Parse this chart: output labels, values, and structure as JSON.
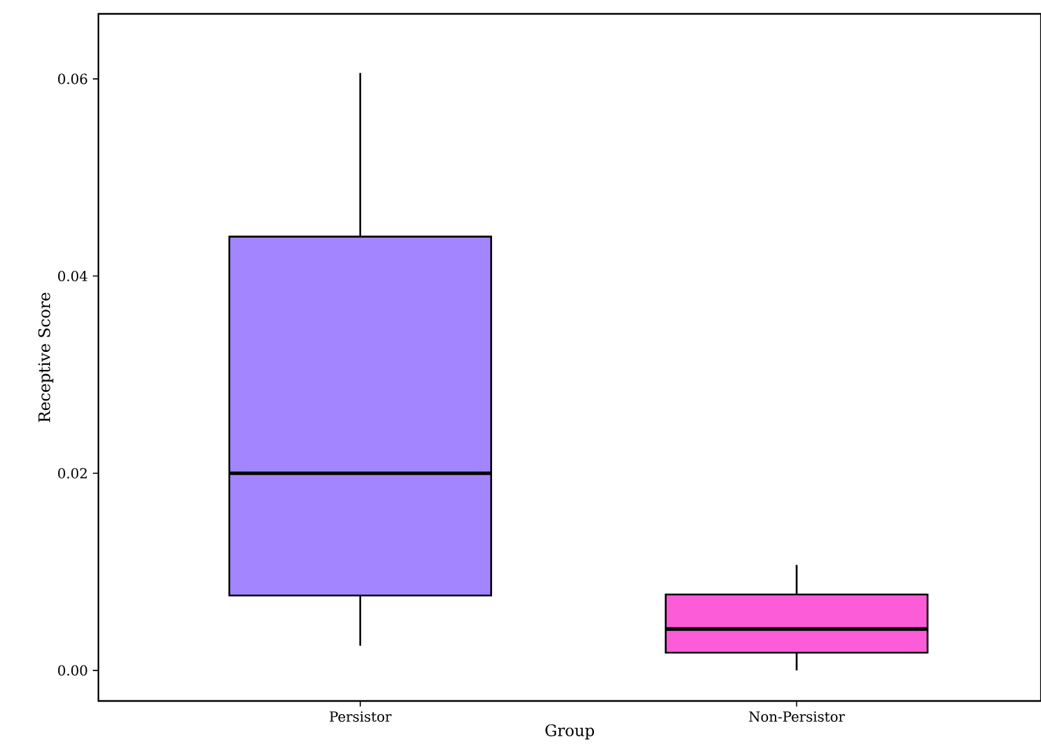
{
  "chart_data": {
    "type": "box",
    "xlabel": "Group",
    "ylabel": "Receptive Score",
    "categories": [
      "Persistor",
      "Non-Persistor"
    ],
    "colors": [
      "#a385ff",
      "#fc5cd8"
    ],
    "boxes": [
      {
        "low": 0.0025,
        "q1": 0.0076,
        "median": 0.02,
        "q3": 0.044,
        "high": 0.0606
      },
      {
        "low": 0.0,
        "q1": 0.0018,
        "median": 0.0042,
        "q3": 0.0077,
        "high": 0.0107
      }
    ],
    "ylim": [
      -0.0031,
      0.0666
    ],
    "yticks": [
      {
        "value": 0,
        "label": "0.00"
      },
      {
        "value": 0.02,
        "label": "0.02"
      },
      {
        "value": 0.04,
        "label": "0.04"
      },
      {
        "value": 0.06,
        "label": "0.06"
      }
    ],
    "grid": false
  }
}
